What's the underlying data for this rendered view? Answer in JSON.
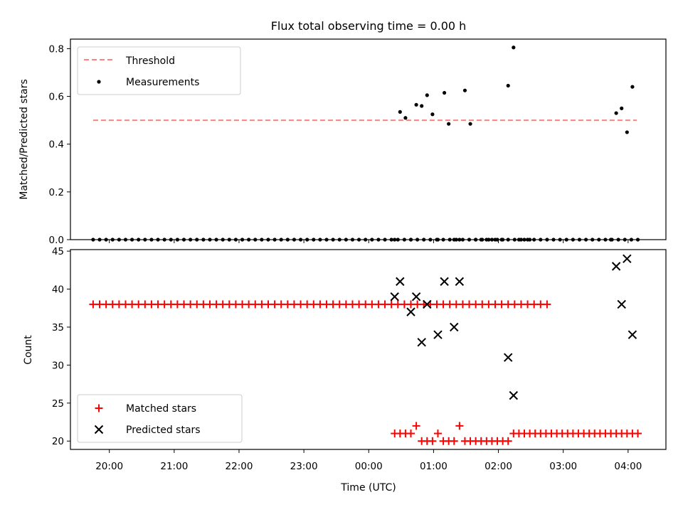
{
  "title": "Flux total observing time = 0.00 h",
  "colors": {
    "threshold": "#ff8080",
    "measurement": "#000000",
    "matched": "#ff0000",
    "predicted": "#000000"
  },
  "chart_data": [
    {
      "type": "scatter",
      "ylabel": "Matched/Predicted stars",
      "xlabel": "",
      "ylim": [
        0,
        0.84
      ],
      "y_ticks": [
        "0.0",
        "0.2",
        "0.4",
        "0.6",
        "0.8"
      ],
      "legend_position": "top-left",
      "legend": [
        "Threshold",
        "Measurements"
      ],
      "threshold": {
        "name": "Threshold",
        "y": 0.5,
        "x_start": "19:45",
        "x_end": "04:08"
      },
      "series": [
        {
          "name": "Measurements",
          "x": [
            "19:45",
            "19:51",
            "19:57",
            "20:03",
            "20:09",
            "20:15",
            "20:21",
            "20:27",
            "20:33",
            "20:39",
            "20:45",
            "20:51",
            "20:57",
            "21:03",
            "21:09",
            "21:15",
            "21:21",
            "21:27",
            "21:33",
            "21:39",
            "21:45",
            "21:51",
            "21:57",
            "22:03",
            "22:09",
            "22:15",
            "22:21",
            "22:27",
            "22:33",
            "22:39",
            "22:45",
            "22:51",
            "22:57",
            "23:03",
            "23:09",
            "23:15",
            "23:21",
            "23:27",
            "23:33",
            "23:39",
            "23:45",
            "23:51",
            "23:57",
            "00:03",
            "00:09",
            "00:15",
            "00:21",
            "00:27",
            "00:33",
            "00:39",
            "00:45",
            "00:51",
            "00:57",
            "01:03",
            "01:09",
            "01:15",
            "01:21",
            "01:27",
            "01:33",
            "01:39",
            "01:45",
            "01:51",
            "01:57",
            "02:03",
            "02:09",
            "02:15",
            "02:21",
            "02:27",
            "02:33",
            "02:39",
            "02:45",
            "02:51",
            "02:57",
            "03:03",
            "03:09",
            "03:15",
            "03:21",
            "03:27",
            "03:33",
            "03:39",
            "03:45",
            "03:51",
            "03:57",
            "04:03",
            "04:09"
          ],
          "y": [
            0,
            0,
            0,
            0,
            0,
            0,
            0,
            0,
            0,
            0,
            0,
            0,
            0,
            0,
            0,
            0,
            0,
            0,
            0,
            0,
            0,
            0,
            0,
            0,
            0,
            0,
            0,
            0,
            0,
            0,
            0,
            0,
            0,
            0,
            0,
            0,
            0,
            0,
            0,
            0,
            0,
            0,
            0,
            0,
            0,
            0,
            0,
            0,
            0,
            0,
            0,
            0,
            0,
            0,
            0,
            0,
            0,
            0,
            0,
            0,
            0,
            0,
            0,
            0,
            0,
            0,
            0,
            0,
            0,
            0,
            0,
            0,
            0,
            0,
            0,
            0,
            0,
            0,
            0,
            0,
            0,
            0,
            0,
            0,
            0
          ]
        }
      ],
      "extra_points": {
        "x": [
          "00:24",
          "00:29",
          "00:34",
          "00:39",
          "00:44",
          "00:49",
          "00:54",
          "00:59",
          "01:04",
          "01:10",
          "01:14",
          "01:19",
          "01:24",
          "01:29",
          "01:34",
          "01:39",
          "01:44",
          "01:49",
          "01:54",
          "01:59",
          "02:04",
          "02:09",
          "02:14",
          "02:19",
          "02:24",
          "02:29",
          "03:44",
          "03:49",
          "03:54",
          "03:59",
          "04:04"
        ],
        "y": [
          0,
          0.535,
          0.51,
          0,
          0.565,
          0.56,
          0.605,
          0.525,
          0,
          0.615,
          0.485,
          0,
          0,
          0.625,
          0.485,
          0,
          0,
          0,
          0,
          0,
          0,
          0.645,
          0.805,
          0,
          0,
          0,
          0,
          0.53,
          0.55,
          0.45,
          0.64
        ]
      }
    },
    {
      "type": "scatter",
      "xlabel": "Time (UTC)",
      "ylabel": "Count",
      "ylim": [
        18.9,
        45.2
      ],
      "y_ticks": [
        "20",
        "25",
        "30",
        "35",
        "40",
        "45"
      ],
      "x_ticks": [
        "20:00",
        "21:00",
        "22:00",
        "23:00",
        "00:00",
        "01:00",
        "02:00",
        "03:00",
        "04:00"
      ],
      "legend_position": "bottom-left",
      "legend": [
        "Matched stars",
        "Predicted stars"
      ],
      "series": [
        {
          "name": "Matched stars",
          "x_start": "19:45",
          "x_step_min": 6,
          "count": 71,
          "value": 38
        },
        {
          "name": "Matched stars",
          "x": [
            "00:24",
            "00:29",
            "00:34",
            "00:39",
            "00:44",
            "00:49",
            "00:54",
            "00:59",
            "01:04",
            "01:09",
            "01:14",
            "01:19",
            "01:24",
            "01:29",
            "01:34",
            "01:39",
            "01:44",
            "01:49",
            "01:54",
            "01:59",
            "02:04",
            "02:09",
            "02:14",
            "02:19",
            "02:24",
            "02:29",
            "02:34",
            "02:39",
            "02:44",
            "02:49",
            "02:54",
            "02:59",
            "03:04",
            "03:09",
            "03:14",
            "03:19",
            "03:24",
            "03:29",
            "03:34",
            "03:39",
            "03:44",
            "03:49",
            "03:54",
            "03:59",
            "04:04",
            "04:09"
          ],
          "y": [
            21,
            21,
            21,
            21,
            22,
            20,
            20,
            20,
            21,
            20,
            20,
            20,
            22,
            20,
            20,
            20,
            20,
            20,
            20,
            20,
            20,
            20,
            21,
            21,
            21,
            21,
            21,
            21,
            21,
            21,
            21,
            21,
            21,
            21,
            21,
            21,
            21,
            21,
            21,
            21,
            21,
            21,
            21,
            21,
            21,
            21
          ]
        },
        {
          "name": "Predicted stars",
          "x": [
            "00:24",
            "00:29",
            "00:39",
            "00:44",
            "00:49",
            "00:54",
            "01:04",
            "01:10",
            "01:19",
            "01:24",
            "02:09",
            "02:14",
            "03:49",
            "03:54",
            "03:59",
            "04:04"
          ],
          "y": [
            39,
            41,
            37,
            39,
            33,
            38,
            34,
            41,
            35,
            41,
            31,
            26,
            43,
            38,
            44,
            34
          ]
        }
      ]
    }
  ]
}
